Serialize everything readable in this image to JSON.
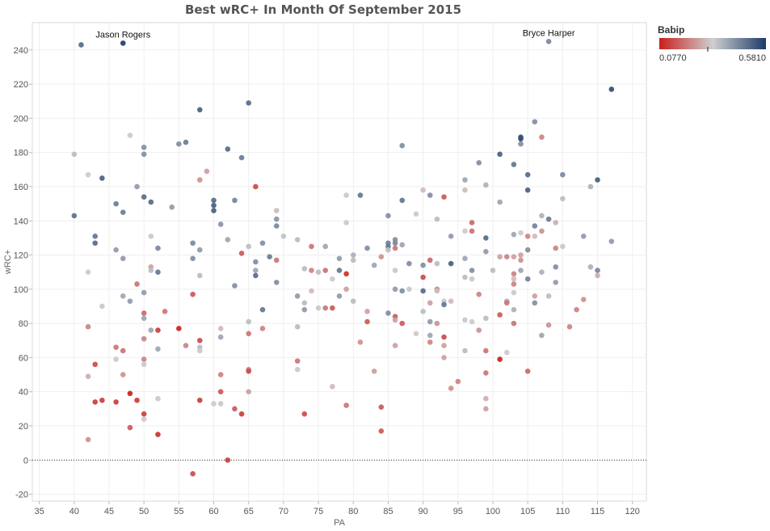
{
  "chart_data": {
    "type": "scatter",
    "title": "Best wRC+ In Month Of September 2015",
    "xlabel": "PA",
    "ylabel": "wRC+",
    "xlim": [
      34,
      122
    ],
    "ylim": [
      -24,
      256
    ],
    "x_ticks": [
      35,
      40,
      45,
      50,
      55,
      60,
      65,
      70,
      75,
      80,
      85,
      90,
      95,
      100,
      105,
      110,
      115,
      120
    ],
    "y_ticks": [
      -20,
      0,
      20,
      40,
      60,
      80,
      100,
      120,
      140,
      160,
      180,
      200,
      220,
      240
    ],
    "grid": true,
    "reference_line_y": 0,
    "color_legend": {
      "title": "Babip",
      "min_label": "0.0770",
      "max_label": "0.5810",
      "min": 0.077,
      "max": 0.581,
      "low_color": "#c8201e",
      "mid_color": "#cfcfcf",
      "high_color": "#1d3b69",
      "placement": "top-right"
    },
    "annotations": [
      {
        "label": "Jason Rogers",
        "x": 47,
        "y": 244
      },
      {
        "label": "Bryce Harper",
        "x": 108,
        "y": 245
      }
    ],
    "points": [
      [
        41,
        243,
        0.5
      ],
      [
        47,
        244,
        0.58
      ],
      [
        108,
        245,
        0.45
      ],
      [
        117,
        217,
        0.55
      ],
      [
        65,
        209,
        0.5
      ],
      [
        58,
        205,
        0.52
      ],
      [
        40,
        179,
        0.36
      ],
      [
        40,
        143,
        0.49
      ],
      [
        42,
        167,
        0.32
      ],
      [
        42,
        110,
        0.32
      ],
      [
        42,
        78,
        0.22
      ],
      [
        42,
        49,
        0.28
      ],
      [
        42,
        12,
        0.24
      ],
      [
        43,
        131,
        0.48
      ],
      [
        43,
        127,
        0.5
      ],
      [
        43,
        56,
        0.14
      ],
      [
        43,
        34,
        0.12
      ],
      [
        44,
        165,
        0.52
      ],
      [
        44,
        90,
        0.34
      ],
      [
        44,
        35,
        0.12
      ],
      [
        46,
        150,
        0.47
      ],
      [
        46,
        123,
        0.42
      ],
      [
        46,
        66,
        0.2
      ],
      [
        46,
        59,
        0.32
      ],
      [
        46,
        34,
        0.12
      ],
      [
        47,
        145,
        0.47
      ],
      [
        47,
        118,
        0.42
      ],
      [
        47,
        96,
        0.4
      ],
      [
        47,
        64,
        0.2
      ],
      [
        47,
        50,
        0.24
      ],
      [
        48,
        190,
        0.32
      ],
      [
        48,
        93,
        0.42
      ],
      [
        48,
        39,
        0.08
      ],
      [
        48,
        19,
        0.16
      ],
      [
        49,
        160,
        0.42
      ],
      [
        49,
        103,
        0.2
      ],
      [
        49,
        35,
        0.12
      ],
      [
        50,
        183,
        0.44
      ],
      [
        50,
        179,
        0.44
      ],
      [
        50,
        154,
        0.5
      ],
      [
        50,
        98,
        0.42
      ],
      [
        50,
        86,
        0.18
      ],
      [
        50,
        83,
        0.4
      ],
      [
        50,
        71,
        0.22
      ],
      [
        50,
        59,
        0.22
      ],
      [
        50,
        56,
        0.34
      ],
      [
        50,
        27,
        0.12
      ],
      [
        50,
        24,
        0.32
      ],
      [
        51,
        151,
        0.5
      ],
      [
        51,
        131,
        0.34
      ],
      [
        51,
        113,
        0.26
      ],
      [
        51,
        111,
        0.36
      ],
      [
        51,
        76,
        0.4
      ],
      [
        52,
        124,
        0.45
      ],
      [
        52,
        110,
        0.48
      ],
      [
        52,
        76,
        0.12
      ],
      [
        52,
        65,
        0.4
      ],
      [
        52,
        36,
        0.32
      ],
      [
        52,
        15,
        0.1
      ],
      [
        53,
        87,
        0.2
      ],
      [
        54,
        148,
        0.42
      ],
      [
        55,
        185,
        0.44
      ],
      [
        55,
        77,
        0.08
      ],
      [
        56,
        186,
        0.47
      ],
      [
        56,
        67,
        0.22
      ],
      [
        57,
        127,
        0.45
      ],
      [
        57,
        118,
        0.44
      ],
      [
        57,
        97,
        0.16
      ],
      [
        57,
        -8,
        0.14
      ],
      [
        58,
        164,
        0.24
      ],
      [
        58,
        123,
        0.42
      ],
      [
        58,
        108,
        0.36
      ],
      [
        58,
        70,
        0.14
      ],
      [
        58,
        66,
        0.36
      ],
      [
        58,
        64,
        0.34
      ],
      [
        58,
        35,
        0.12
      ],
      [
        59,
        169,
        0.26
      ],
      [
        60,
        152,
        0.5
      ],
      [
        60,
        149,
        0.52
      ],
      [
        60,
        146,
        0.52
      ],
      [
        60,
        33,
        0.32
      ],
      [
        61,
        138,
        0.43
      ],
      [
        61,
        77,
        0.3
      ],
      [
        61,
        72,
        0.4
      ],
      [
        61,
        50,
        0.22
      ],
      [
        61,
        40,
        0.16
      ],
      [
        61,
        33,
        0.34
      ],
      [
        62,
        182,
        0.5
      ],
      [
        62,
        129,
        0.4
      ],
      [
        62,
        0,
        0.12
      ],
      [
        63,
        152,
        0.46
      ],
      [
        63,
        102,
        0.44
      ],
      [
        63,
        30,
        0.16
      ],
      [
        64,
        177,
        0.47
      ],
      [
        64,
        121,
        0.16
      ],
      [
        64,
        27,
        0.12
      ],
      [
        65,
        125,
        0.36
      ],
      [
        65,
        81,
        0.36
      ],
      [
        65,
        74,
        0.2
      ],
      [
        65,
        53,
        0.22
      ],
      [
        65,
        52,
        0.14
      ],
      [
        65,
        40,
        0.26
      ],
      [
        66,
        160,
        0.14
      ],
      [
        66,
        116,
        0.44
      ],
      [
        66,
        111,
        0.4
      ],
      [
        66,
        108,
        0.5
      ],
      [
        67,
        127,
        0.44
      ],
      [
        67,
        88,
        0.48
      ],
      [
        67,
        77,
        0.22
      ],
      [
        68,
        119,
        0.47
      ],
      [
        69,
        146,
        0.3
      ],
      [
        69,
        141,
        0.43
      ],
      [
        69,
        137,
        0.45
      ],
      [
        69,
        117,
        0.2
      ],
      [
        69,
        104,
        0.44
      ],
      [
        70,
        131,
        0.35
      ],
      [
        72,
        129,
        0.36
      ],
      [
        72,
        96,
        0.42
      ],
      [
        72,
        78,
        0.36
      ],
      [
        72,
        58,
        0.2
      ],
      [
        72,
        53,
        0.34
      ],
      [
        73,
        112,
        0.36
      ],
      [
        73,
        92,
        0.36
      ],
      [
        73,
        88,
        0.42
      ],
      [
        73,
        27,
        0.14
      ],
      [
        74,
        125,
        0.2
      ],
      [
        74,
        111,
        0.22
      ],
      [
        74,
        99,
        0.3
      ],
      [
        75,
        110,
        0.36
      ],
      [
        75,
        89,
        0.34
      ],
      [
        76,
        125,
        0.4
      ],
      [
        76,
        111,
        0.2
      ],
      [
        76,
        89,
        0.2
      ],
      [
        77,
        106,
        0.32
      ],
      [
        77,
        89,
        0.16
      ],
      [
        77,
        43,
        0.3
      ],
      [
        78,
        118,
        0.42
      ],
      [
        78,
        111,
        0.48
      ],
      [
        78,
        96,
        0.42
      ],
      [
        79,
        155,
        0.34
      ],
      [
        79,
        139,
        0.34
      ],
      [
        79,
        109,
        0.1
      ],
      [
        79,
        100,
        0.26
      ],
      [
        79,
        32,
        0.2
      ],
      [
        80,
        120,
        0.38
      ],
      [
        80,
        117,
        0.36
      ],
      [
        80,
        93,
        0.36
      ],
      [
        81,
        155,
        0.48
      ],
      [
        81,
        69,
        0.24
      ],
      [
        82,
        124,
        0.44
      ],
      [
        82,
        87,
        0.26
      ],
      [
        82,
        81,
        0.16
      ],
      [
        83,
        114,
        0.4
      ],
      [
        83,
        52,
        0.26
      ],
      [
        84,
        119,
        0.24
      ],
      [
        84,
        31,
        0.16
      ],
      [
        84,
        17,
        0.16
      ],
      [
        85,
        143,
        0.44
      ],
      [
        85,
        127,
        0.46
      ],
      [
        85,
        125,
        0.48
      ],
      [
        85,
        123,
        0.36
      ],
      [
        85,
        86,
        0.44
      ],
      [
        86,
        129,
        0.44
      ],
      [
        86,
        127,
        0.45
      ],
      [
        86,
        124,
        0.2
      ],
      [
        86,
        111,
        0.34
      ],
      [
        86,
        100,
        0.42
      ],
      [
        86,
        84,
        0.16
      ],
      [
        86,
        82,
        0.26
      ],
      [
        86,
        67,
        0.26
      ],
      [
        87,
        184,
        0.44
      ],
      [
        87,
        152,
        0.48
      ],
      [
        87,
        126,
        0.4
      ],
      [
        87,
        99,
        0.44
      ],
      [
        87,
        80,
        0.16
      ],
      [
        88,
        115,
        0.44
      ],
      [
        88,
        100,
        0.34
      ],
      [
        89,
        144,
        0.34
      ],
      [
        89,
        74,
        0.32
      ],
      [
        90,
        158,
        0.3
      ],
      [
        90,
        114,
        0.44
      ],
      [
        90,
        107,
        0.14
      ],
      [
        90,
        99,
        0.5
      ],
      [
        90,
        87,
        0.36
      ],
      [
        91,
        155,
        0.44
      ],
      [
        91,
        117,
        0.18
      ],
      [
        91,
        92,
        0.26
      ],
      [
        91,
        81,
        0.42
      ],
      [
        91,
        73,
        0.4
      ],
      [
        91,
        69,
        0.22
      ],
      [
        92,
        141,
        0.36
      ],
      [
        92,
        115,
        0.36
      ],
      [
        92,
        100,
        0.22
      ],
      [
        92,
        99,
        0.3
      ],
      [
        92,
        80,
        0.24
      ],
      [
        93,
        154,
        0.16
      ],
      [
        93,
        93,
        0.34
      ],
      [
        93,
        91,
        0.48
      ],
      [
        93,
        72,
        0.14
      ],
      [
        93,
        67,
        0.26
      ],
      [
        93,
        60,
        0.26
      ],
      [
        94,
        131,
        0.42
      ],
      [
        94,
        115,
        0.52
      ],
      [
        94,
        93,
        0.3
      ],
      [
        94,
        42,
        0.24
      ],
      [
        95,
        46,
        0.22
      ],
      [
        96,
        164,
        0.4
      ],
      [
        96,
        158,
        0.3
      ],
      [
        96,
        134,
        0.32
      ],
      [
        96,
        118,
        0.4
      ],
      [
        96,
        107,
        0.36
      ],
      [
        96,
        82,
        0.34
      ],
      [
        96,
        64,
        0.36
      ],
      [
        97,
        139,
        0.18
      ],
      [
        97,
        134,
        0.2
      ],
      [
        97,
        111,
        0.44
      ],
      [
        97,
        106,
        0.34
      ],
      [
        97,
        81,
        0.32
      ],
      [
        98,
        174,
        0.44
      ],
      [
        98,
        97,
        0.22
      ],
      [
        98,
        76,
        0.24
      ],
      [
        99,
        161,
        0.38
      ],
      [
        99,
        130,
        0.5
      ],
      [
        99,
        122,
        0.42
      ],
      [
        99,
        83,
        0.36
      ],
      [
        99,
        64,
        0.2
      ],
      [
        99,
        51,
        0.2
      ],
      [
        99,
        36,
        0.28
      ],
      [
        99,
        30,
        0.26
      ],
      [
        100,
        111,
        0.36
      ],
      [
        101,
        179,
        0.52
      ],
      [
        101,
        151,
        0.4
      ],
      [
        101,
        119,
        0.26
      ],
      [
        101,
        59,
        0.08
      ],
      [
        101,
        85,
        0.16
      ],
      [
        102,
        119,
        0.22
      ],
      [
        102,
        93,
        0.38
      ],
      [
        102,
        92,
        0.2
      ],
      [
        102,
        63,
        0.32
      ],
      [
        103,
        173,
        0.48
      ],
      [
        103,
        132,
        0.4
      ],
      [
        103,
        119,
        0.26
      ],
      [
        103,
        109,
        0.22
      ],
      [
        103,
        106,
        0.3
      ],
      [
        103,
        103,
        0.22
      ],
      [
        103,
        98,
        0.34
      ],
      [
        103,
        88,
        0.38
      ],
      [
        103,
        80,
        0.2
      ],
      [
        104,
        189,
        0.55
      ],
      [
        104,
        188,
        0.55
      ],
      [
        104,
        185,
        0.44
      ],
      [
        104,
        133,
        0.32
      ],
      [
        104,
        120,
        0.26
      ],
      [
        104,
        117,
        0.24
      ],
      [
        104,
        111,
        0.4
      ],
      [
        105,
        167,
        0.5
      ],
      [
        105,
        158,
        0.52
      ],
      [
        105,
        131,
        0.22
      ],
      [
        105,
        123,
        0.44
      ],
      [
        105,
        106,
        0.46
      ],
      [
        105,
        52,
        0.18
      ],
      [
        106,
        198,
        0.44
      ],
      [
        106,
        137,
        0.46
      ],
      [
        106,
        131,
        0.3
      ],
      [
        106,
        96,
        0.26
      ],
      [
        106,
        92,
        0.44
      ],
      [
        107,
        189,
        0.22
      ],
      [
        107,
        143,
        0.38
      ],
      [
        107,
        134,
        0.24
      ],
      [
        107,
        110,
        0.38
      ],
      [
        107,
        73,
        0.4
      ],
      [
        108,
        141,
        0.47
      ],
      [
        108,
        96,
        0.36
      ],
      [
        108,
        79,
        0.24
      ],
      [
        109,
        139,
        0.28
      ],
      [
        109,
        124,
        0.22
      ],
      [
        109,
        113,
        0.44
      ],
      [
        109,
        104,
        0.42
      ],
      [
        110,
        167,
        0.45
      ],
      [
        110,
        153,
        0.36
      ],
      [
        110,
        125,
        0.34
      ],
      [
        111,
        78,
        0.22
      ],
      [
        112,
        88,
        0.22
      ],
      [
        113,
        131,
        0.42
      ],
      [
        113,
        94,
        0.24
      ],
      [
        114,
        160,
        0.38
      ],
      [
        114,
        113,
        0.38
      ],
      [
        115,
        164,
        0.52
      ],
      [
        115,
        111,
        0.45
      ],
      [
        115,
        108,
        0.28
      ],
      [
        117,
        128,
        0.42
      ]
    ]
  }
}
